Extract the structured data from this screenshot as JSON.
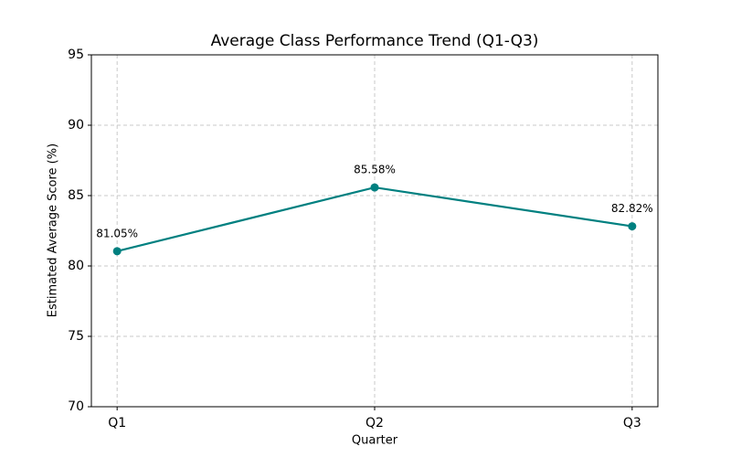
{
  "chart_data": {
    "type": "line",
    "title": "Average Class Performance Trend (Q1-Q3)",
    "x_label": "Quarter",
    "y_label": "Estimated Average Score (%)",
    "categories": [
      "Q1",
      "Q2",
      "Q3"
    ],
    "series": [
      {
        "name": "Average Score",
        "color": "#008080",
        "values": [
          81.05,
          85.58,
          82.82
        ],
        "value_labels": [
          "81.05%",
          "85.58%",
          "82.82%"
        ]
      }
    ],
    "ylim": [
      70,
      95
    ],
    "yticks": [
      70,
      75,
      80,
      85,
      90,
      95
    ],
    "grid": true
  }
}
